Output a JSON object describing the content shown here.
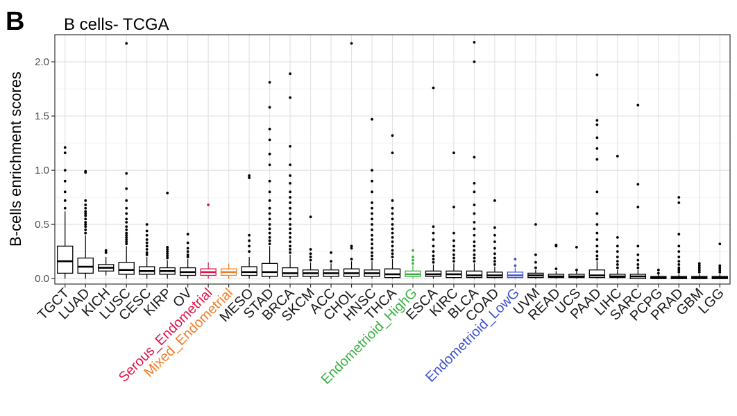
{
  "panel_label": "B",
  "chart_data": {
    "type": "boxplot",
    "title": "B cells- TCGA",
    "xlabel": "",
    "ylabel": "B-cells enrichment scores",
    "ylim": [
      -0.05,
      2.25
    ],
    "yticks": [
      0.0,
      0.5,
      1.0,
      1.5,
      2.0
    ],
    "ytick_labels": [
      "0.0",
      "0.5",
      "1.0",
      "1.5",
      "2.0"
    ],
    "grid": true,
    "legend": "none",
    "default_color": "#000000",
    "categories": [
      "TGCT",
      "LUAD",
      "KICH",
      "LUSC",
      "CESC",
      "KIRP",
      "OV",
      "Serous_Endometrial",
      "Mixed_Endometrial",
      "MESO",
      "STAD",
      "BRCA",
      "SKCM",
      "ACC",
      "CHOL",
      "HNSC",
      "THCA",
      "Endometrioid_HighG",
      "ESCA",
      "KIRC",
      "BLCA",
      "COAD",
      "Endometrioid_LowG",
      "UVM",
      "READ",
      "UCS",
      "PAAD",
      "LIHC",
      "SARC",
      "PCPG",
      "PRAD",
      "GBM",
      "LGG"
    ],
    "category_colors": {
      "Serous_Endometrial": "#E0134A",
      "Mixed_Endometrial": "#F07D25",
      "Endometrioid_HighG": "#3CB043",
      "Endometrioid_LowG": "#3F51D0"
    },
    "boxes": [
      {
        "q1": 0.05,
        "median": 0.16,
        "q3": 0.3,
        "wlo": 0.0,
        "whi": 0.62,
        "outliers": [
          0.65,
          0.72,
          0.8,
          0.9,
          1.0,
          1.16,
          1.21
        ]
      },
      {
        "q1": 0.05,
        "median": 0.11,
        "q3": 0.19,
        "wlo": 0.0,
        "whi": 0.4,
        "outliers": [
          0.42,
          0.45,
          0.48,
          0.5,
          0.52,
          0.55,
          0.58,
          0.6,
          0.62,
          0.65,
          0.68,
          0.72,
          0.98,
          0.99
        ]
      },
      {
        "q1": 0.07,
        "median": 0.1,
        "q3": 0.13,
        "wlo": 0.03,
        "whi": 0.2,
        "outliers": [
          0.24,
          0.26
        ]
      },
      {
        "q1": 0.04,
        "median": 0.08,
        "q3": 0.15,
        "wlo": 0.0,
        "whi": 0.3,
        "outliers": [
          0.32,
          0.34,
          0.36,
          0.38,
          0.4,
          0.42,
          0.45,
          0.48,
          0.52,
          0.55,
          0.6,
          0.65,
          0.72,
          0.83,
          0.97,
          2.17
        ]
      },
      {
        "q1": 0.04,
        "median": 0.07,
        "q3": 0.11,
        "wlo": 0.0,
        "whi": 0.2,
        "outliers": [
          0.22,
          0.24,
          0.27,
          0.3,
          0.33,
          0.36,
          0.4,
          0.44,
          0.5
        ]
      },
      {
        "q1": 0.04,
        "median": 0.07,
        "q3": 0.1,
        "wlo": 0.0,
        "whi": 0.17,
        "outliers": [
          0.19,
          0.21,
          0.23,
          0.25,
          0.27,
          0.29,
          0.79
        ]
      },
      {
        "q1": 0.03,
        "median": 0.06,
        "q3": 0.1,
        "wlo": 0.0,
        "whi": 0.18,
        "outliers": [
          0.2,
          0.22,
          0.25,
          0.28,
          0.33,
          0.41
        ]
      },
      {
        "q1": 0.03,
        "median": 0.06,
        "q3": 0.09,
        "wlo": 0.0,
        "whi": 0.15,
        "outliers": [
          0.68
        ]
      },
      {
        "q1": 0.03,
        "median": 0.06,
        "q3": 0.09,
        "wlo": 0.0,
        "whi": 0.14,
        "outliers": []
      },
      {
        "q1": 0.03,
        "median": 0.06,
        "q3": 0.11,
        "wlo": 0.0,
        "whi": 0.2,
        "outliers": [
          0.25,
          0.3,
          0.35,
          0.4,
          0.93,
          0.95
        ]
      },
      {
        "q1": 0.02,
        "median": 0.06,
        "q3": 0.14,
        "wlo": 0.0,
        "whi": 0.3,
        "outliers": [
          0.32,
          0.35,
          0.38,
          0.42,
          0.46,
          0.5,
          0.55,
          0.6,
          0.65,
          0.72,
          0.8,
          0.9,
          1.05,
          1.15,
          1.28,
          1.38,
          1.58,
          1.81
        ]
      },
      {
        "q1": 0.02,
        "median": 0.05,
        "q3": 0.1,
        "wlo": 0.0,
        "whi": 0.22,
        "outliers": [
          0.24,
          0.27,
          0.3,
          0.34,
          0.38,
          0.42,
          0.46,
          0.5,
          0.55,
          0.6,
          0.65,
          0.7,
          0.75,
          0.8,
          0.88,
          0.95,
          1.05,
          1.22,
          1.67,
          1.89
        ]
      },
      {
        "q1": 0.02,
        "median": 0.05,
        "q3": 0.08,
        "wlo": 0.0,
        "whi": 0.15,
        "outliers": [
          0.17,
          0.2,
          0.23,
          0.27,
          0.57
        ]
      },
      {
        "q1": 0.02,
        "median": 0.05,
        "q3": 0.08,
        "wlo": 0.0,
        "whi": 0.14,
        "outliers": [
          0.16,
          0.24
        ]
      },
      {
        "q1": 0.02,
        "median": 0.05,
        "q3": 0.09,
        "wlo": 0.0,
        "whi": 0.16,
        "outliers": [
          0.18,
          0.28,
          0.3,
          2.17
        ]
      },
      {
        "q1": 0.02,
        "median": 0.05,
        "q3": 0.08,
        "wlo": 0.0,
        "whi": 0.16,
        "outliers": [
          0.18,
          0.21,
          0.24,
          0.28,
          0.32,
          0.36,
          0.4,
          0.45,
          0.5,
          0.55,
          0.6,
          0.65,
          0.7,
          0.8,
          0.9,
          1.0,
          1.47
        ]
      },
      {
        "q1": 0.01,
        "median": 0.04,
        "q3": 0.09,
        "wlo": 0.0,
        "whi": 0.18,
        "outliers": [
          0.2,
          0.23,
          0.26,
          0.3,
          0.34,
          0.38,
          0.42,
          0.46,
          0.5,
          0.55,
          0.6,
          0.65,
          0.72,
          1.16,
          1.32
        ]
      },
      {
        "q1": 0.02,
        "median": 0.04,
        "q3": 0.07,
        "wlo": 0.0,
        "whi": 0.12,
        "outliers": [
          0.14,
          0.17,
          0.2,
          0.26
        ]
      },
      {
        "q1": 0.02,
        "median": 0.04,
        "q3": 0.07,
        "wlo": 0.0,
        "whi": 0.13,
        "outliers": [
          0.15,
          0.18,
          0.21,
          0.25,
          0.3,
          0.36,
          0.42,
          0.48,
          1.76
        ]
      },
      {
        "q1": 0.01,
        "median": 0.04,
        "q3": 0.07,
        "wlo": 0.0,
        "whi": 0.14,
        "outliers": [
          0.16,
          0.19,
          0.22,
          0.26,
          0.3,
          0.35,
          0.42,
          0.66,
          1.16
        ]
      },
      {
        "q1": 0.01,
        "median": 0.03,
        "q3": 0.07,
        "wlo": 0.0,
        "whi": 0.14,
        "outliers": [
          0.16,
          0.19,
          0.22,
          0.26,
          0.3,
          0.34,
          0.4,
          0.46,
          0.52,
          0.6,
          0.68,
          0.8,
          0.88,
          1.12,
          2.0,
          2.18
        ]
      },
      {
        "q1": 0.01,
        "median": 0.03,
        "q3": 0.06,
        "wlo": 0.0,
        "whi": 0.11,
        "outliers": [
          0.13,
          0.16,
          0.19,
          0.23,
          0.28,
          0.34,
          0.4,
          0.47,
          0.72
        ]
      },
      {
        "q1": 0.01,
        "median": 0.03,
        "q3": 0.06,
        "wlo": 0.0,
        "whi": 0.1,
        "outliers": [
          0.12,
          0.18
        ]
      },
      {
        "q1": 0.01,
        "median": 0.03,
        "q3": 0.05,
        "wlo": 0.0,
        "whi": 0.08,
        "outliers": [
          0.1,
          0.15,
          0.22,
          0.5
        ]
      },
      {
        "q1": 0.01,
        "median": 0.02,
        "q3": 0.04,
        "wlo": 0.0,
        "whi": 0.07,
        "outliers": [
          0.09,
          0.3,
          0.31
        ]
      },
      {
        "q1": 0.01,
        "median": 0.02,
        "q3": 0.04,
        "wlo": 0.0,
        "whi": 0.07,
        "outliers": [
          0.08,
          0.29
        ]
      },
      {
        "q1": 0.01,
        "median": 0.03,
        "q3": 0.08,
        "wlo": 0.0,
        "whi": 0.16,
        "outliers": [
          0.18,
          0.21,
          0.25,
          0.3,
          0.36,
          0.42,
          0.5,
          0.6,
          0.8,
          1.1,
          1.2,
          1.3,
          1.42,
          1.46,
          1.88
        ]
      },
      {
        "q1": 0.01,
        "median": 0.02,
        "q3": 0.04,
        "wlo": 0.0,
        "whi": 0.08,
        "outliers": [
          0.1,
          0.13,
          0.16,
          0.2,
          0.25,
          0.3,
          0.38,
          1.13
        ]
      },
      {
        "q1": 0.0,
        "median": 0.02,
        "q3": 0.04,
        "wlo": 0.0,
        "whi": 0.08,
        "outliers": [
          0.1,
          0.13,
          0.17,
          0.22,
          0.3,
          0.66,
          0.87,
          1.6
        ]
      },
      {
        "q1": 0.0,
        "median": 0.01,
        "q3": 0.02,
        "wlo": 0.0,
        "whi": 0.04,
        "outliers": [
          0.05,
          0.08
        ]
      },
      {
        "q1": 0.0,
        "median": 0.01,
        "q3": 0.02,
        "wlo": 0.0,
        "whi": 0.04,
        "outliers": [
          0.06,
          0.08,
          0.1,
          0.13,
          0.16,
          0.2,
          0.25,
          0.3,
          0.41,
          0.7,
          0.75
        ]
      },
      {
        "q1": 0.0,
        "median": 0.01,
        "q3": 0.02,
        "wlo": 0.0,
        "whi": 0.04,
        "outliers": [
          0.06,
          0.08,
          0.1,
          0.12,
          0.14
        ]
      },
      {
        "q1": 0.0,
        "median": 0.01,
        "q3": 0.02,
        "wlo": 0.0,
        "whi": 0.04,
        "outliers": [
          0.06,
          0.08,
          0.1,
          0.12,
          0.32
        ]
      }
    ]
  }
}
